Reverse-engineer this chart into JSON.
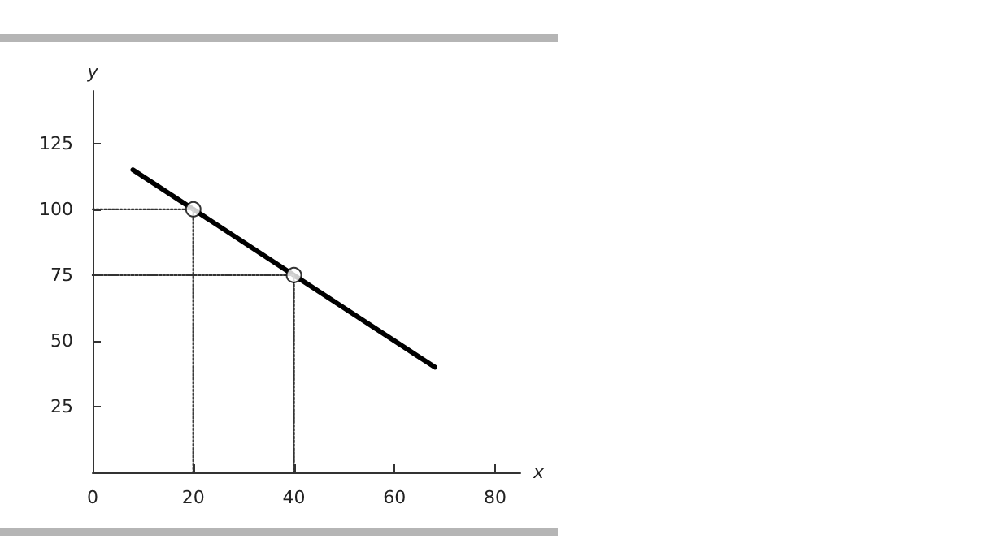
{
  "chart_data": {
    "type": "line",
    "xlabel": "x",
    "ylabel": "y",
    "xlim": [
      0,
      85
    ],
    "ylim": [
      0,
      145
    ],
    "xticks": [
      0,
      20,
      40,
      60,
      80
    ],
    "yticks": [
      25,
      50,
      75,
      100,
      125
    ],
    "grid": false,
    "series": [
      {
        "color": "#000000",
        "x": [
          8,
          20,
          40,
          68
        ],
        "values": [
          115,
          100,
          75,
          40
        ],
        "marker": "none",
        "line_style": "solid"
      },
      {
        "type": "line",
        "color": "#333333",
        "x": [
          0,
          20,
          20
        ],
        "values": [
          100,
          100,
          0
        ],
        "marker": "none",
        "line_style": "dotted"
      },
      {
        "type": "line",
        "color": "#333333",
        "x": [
          0,
          40,
          40
        ],
        "values": [
          75,
          75,
          0
        ],
        "marker": "none",
        "line_style": "dotted"
      },
      {
        "type": "scatter",
        "color": "#000000",
        "x": [
          20,
          40
        ],
        "values": [
          100,
          75
        ],
        "marker": "circle"
      }
    ]
  }
}
